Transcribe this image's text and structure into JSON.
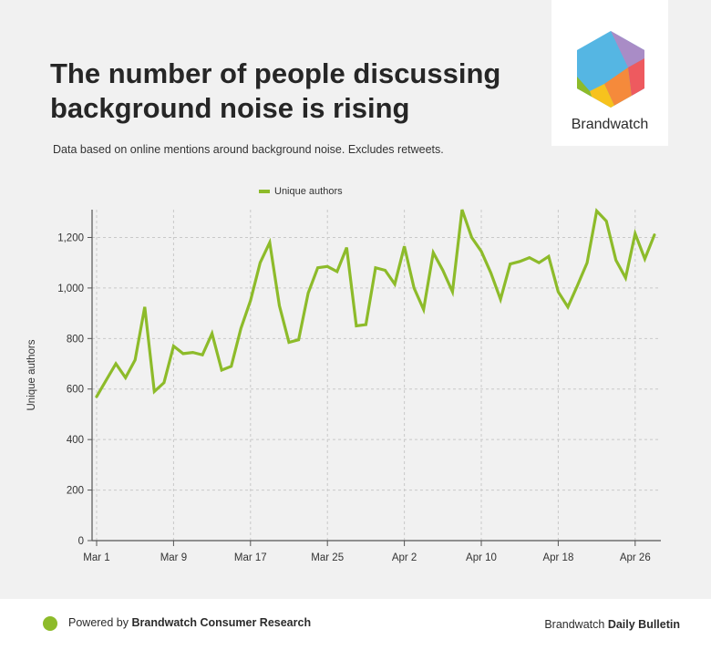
{
  "header": {
    "title": "The number of people discussing background noise is rising",
    "subtitle": "Data based on online mentions around background noise. Excludes retweets."
  },
  "logo": {
    "text": "Brandwatch"
  },
  "footer": {
    "powered_prefix": "Powered by",
    "powered_brand": "Brandwatch Consumer Research",
    "right_prefix": "Brandwatch",
    "right_bold": "Daily Bulletin",
    "dot_color": "#8dbb2a"
  },
  "chart_data": {
    "type": "line",
    "title": "The number of people discussing background noise is rising",
    "xlabel": "",
    "ylabel": "Unique authors",
    "ylim": [
      0,
      1310
    ],
    "yticks": [
      0,
      200,
      400,
      600,
      800,
      1000,
      1200
    ],
    "ytick_labels": [
      "0",
      "200",
      "400",
      "600",
      "800",
      "1,000",
      "1,200"
    ],
    "xtick_labels": [
      "Mar 1",
      "Mar 9",
      "Mar 17",
      "Mar 25",
      "Apr 2",
      "Apr 10",
      "Apr 18",
      "Apr 26"
    ],
    "xtick_days": [
      0,
      8,
      16,
      24,
      32,
      40,
      48,
      56
    ],
    "grid": true,
    "legend": "top-center",
    "series": [
      {
        "name": "Unique authors",
        "color": "#8dbb2a",
        "values": [
          570,
          635,
          700,
          645,
          715,
          925,
          590,
          625,
          770,
          740,
          745,
          735,
          820,
          675,
          690,
          840,
          950,
          1100,
          1180,
          930,
          785,
          795,
          980,
          1080,
          1085,
          1065,
          1160,
          850,
          855,
          1080,
          1070,
          1015,
          1165,
          1000,
          915,
          1140,
          1070,
          985,
          1310,
          1200,
          1145,
          1060,
          955,
          1095,
          1105,
          1120,
          1100,
          1125,
          985,
          925,
          1010,
          1100,
          1305,
          1265,
          1110,
          1040,
          1215,
          1115,
          1210
        ]
      }
    ]
  }
}
